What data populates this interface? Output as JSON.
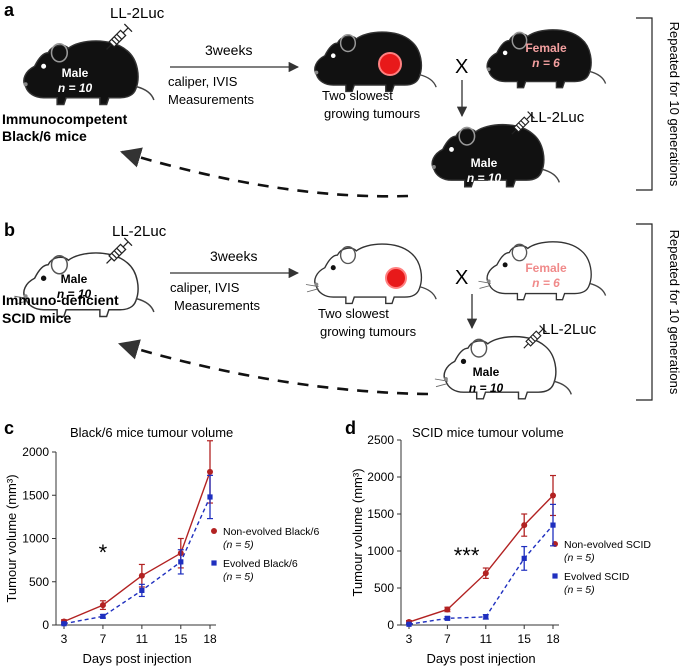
{
  "panel_a": {
    "letter": "a",
    "syringe_label": "LL-2Luc",
    "male_label": "Male",
    "male_n": "n = 10",
    "strain_line1": "Immunocompetent",
    "strain_line2": "Black/6 mice",
    "arrow_top_label": "3weeks",
    "arrow_bottom_line1": "caliper, IVIS",
    "arrow_bottom_line2": "Measurements",
    "slow_line1": "Two slowest",
    "slow_line2": "growing tumours",
    "cross_symbol": "X",
    "female_label": "Female",
    "female_n": "n = 6",
    "offspring_syringe_label": "LL-2Luc",
    "offspring_male_label": "Male",
    "offspring_male_n": "n = 10",
    "repeat_label": "Repeated for 10 generations",
    "colors": {
      "mouse_fill": "#111111",
      "female_text": "#f4a0a0",
      "tumour": "#e8191a"
    }
  },
  "panel_b": {
    "letter": "b",
    "syringe_label": "LL-2Luc",
    "male_label": "Male",
    "male_n": "n = 10",
    "strain_line1": "Immuno-deficient",
    "strain_line2": "SCID mice",
    "arrow_top_label": "3weeks",
    "arrow_bottom_line1": "caliper, IVIS",
    "arrow_bottom_line2": "Measurements",
    "slow_line1": "Two slowest",
    "slow_line2": "growing tumours",
    "cross_symbol": "X",
    "female_label": "Female",
    "female_n": "n = 6",
    "offspring_syringe_label": "LL-2Luc",
    "offspring_male_label": "Male",
    "offspring_male_n": "n = 10",
    "repeat_label": "Repeated for 10 generations",
    "colors": {
      "mouse_fill": "#ffffff",
      "female_text": "#f08a8a",
      "tumour": "#e8191a"
    }
  },
  "chart_data": [
    {
      "panel": "c",
      "type": "line",
      "title": "Black/6 mice tumour volume",
      "xlabel": "Days post injection",
      "ylabel": "Tumour volume (mm³)",
      "x": [
        3,
        7,
        11,
        15,
        18
      ],
      "ylim": [
        0,
        2000
      ],
      "yticks": [
        0,
        500,
        1000,
        1500,
        2000
      ],
      "series": [
        {
          "name": "Non-evolved Black/6",
          "n_label": "(n = 5)",
          "color": "#b22222",
          "values": [
            40,
            230,
            570,
            830,
            1770
          ],
          "errors": [
            20,
            50,
            130,
            170,
            360
          ]
        },
        {
          "name": "Evolved Black/6",
          "n_label": "(n = 5)",
          "color": "#1f2fbf",
          "values": [
            15,
            100,
            400,
            730,
            1480
          ],
          "errors": [
            10,
            20,
            70,
            140,
            250
          ]
        }
      ],
      "annotation": "*",
      "annotation_x": 7
    },
    {
      "panel": "d",
      "type": "line",
      "title": "SCID mice tumour volume",
      "xlabel": "Days post injection",
      "ylabel": "Tumour volume (mm³)",
      "x": [
        3,
        7,
        11,
        15,
        18
      ],
      "ylim": [
        0,
        2500
      ],
      "yticks": [
        0,
        500,
        1000,
        1500,
        2000,
        2500
      ],
      "series": [
        {
          "name": "Non-evolved SCID",
          "n_label": "(n = 5)",
          "color": "#b22222",
          "values": [
            40,
            210,
            700,
            1350,
            1750
          ],
          "errors": [
            20,
            30,
            70,
            150,
            270
          ]
        },
        {
          "name": "Evolved SCID",
          "n_label": "(n = 5)",
          "color": "#1f2fbf",
          "values": [
            10,
            90,
            110,
            900,
            1350
          ],
          "errors": [
            5,
            20,
            30,
            160,
            280
          ]
        }
      ],
      "annotation": "***",
      "annotation_x": 9
    }
  ]
}
